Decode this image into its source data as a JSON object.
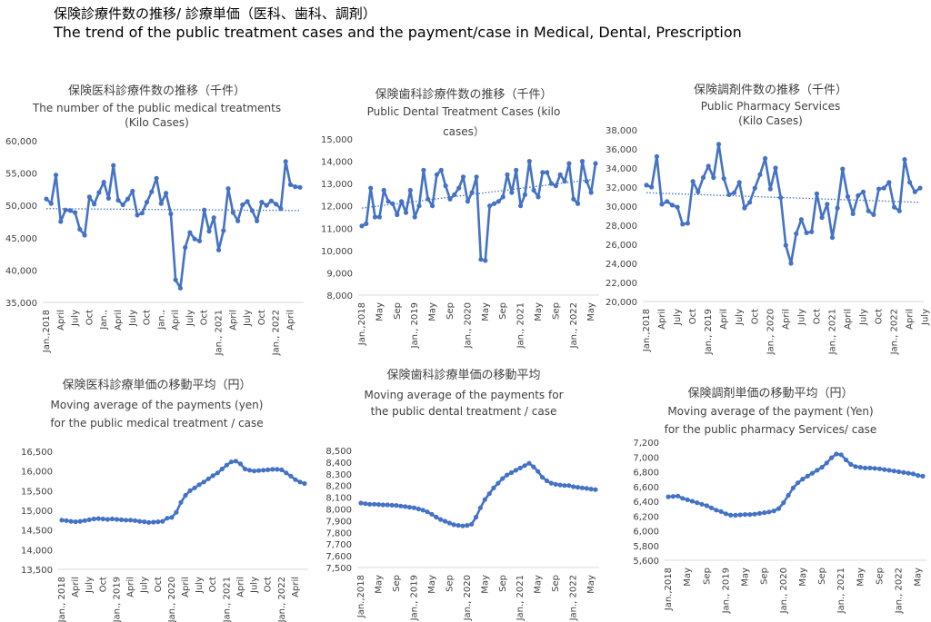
{
  "page": {
    "title_jp": "保険診療件数の推移/ 診療単価（医科、歯科、調剤）",
    "title_en": "The trend of the public treatment cases and the payment/case in Medical, Dental, Prescription"
  },
  "chart_data": [
    {
      "id": "medical-cases",
      "type": "line",
      "title_lines": [
        "保険医科診療件数の推移（千件）",
        "The number of the public medical treatments",
        "(Kilo Cases)"
      ],
      "xlabel": "",
      "ylabel": "",
      "ylim": [
        35000,
        60000
      ],
      "yticks": [
        35000,
        40000,
        45000,
        50000,
        55000,
        60000
      ],
      "ytick_labels": [
        "35,000",
        "40,000",
        "45,000",
        "50,000",
        "55,000",
        "60,000"
      ],
      "xtick_labels": [
        {
          "i": 0,
          "label": "Jan.,2018"
        },
        {
          "i": 3,
          "label": "April"
        },
        {
          "i": 6,
          "label": "July"
        },
        {
          "i": 9,
          "label": "Oct"
        },
        {
          "i": 12,
          "label": "Jan.,"
        },
        {
          "i": 15,
          "label": "April"
        },
        {
          "i": 18,
          "label": "July"
        },
        {
          "i": 21,
          "label": "Oct"
        },
        {
          "i": 24,
          "label": "Jan.,"
        },
        {
          "i": 27,
          "label": "April"
        },
        {
          "i": 30,
          "label": "July"
        },
        {
          "i": 33,
          "label": "Oct"
        },
        {
          "i": 36,
          "label": "Jan., 2021"
        },
        {
          "i": 39,
          "label": "April"
        },
        {
          "i": 42,
          "label": "July"
        },
        {
          "i": 45,
          "label": "Oct"
        },
        {
          "i": 48,
          "label": "Jan., 2022"
        },
        {
          "i": 51,
          "label": "April"
        }
      ],
      "series": [
        {
          "values": [
            51000,
            50300,
            54700,
            47500,
            49300,
            49200,
            48900,
            46300,
            45400,
            51300,
            50200,
            52000,
            53600,
            51100,
            56200,
            50800,
            50100,
            51000,
            52200,
            48500,
            48800,
            50500,
            52100,
            54200,
            50300,
            51900,
            48700,
            38500,
            37200,
            43500,
            45800,
            44800,
            44500,
            49300,
            46000,
            48100,
            43100,
            46100,
            52600,
            48900,
            47600,
            50100,
            50600,
            49200,
            47600,
            50500,
            50000,
            50700,
            50200,
            49500,
            56800,
            53200,
            52900,
            52800
          ]
        }
      ],
      "trendline": {
        "style": "dotted",
        "start": 49500,
        "end": 49200
      },
      "color": "#4472C4"
    },
    {
      "id": "dental-cases",
      "type": "line",
      "title_lines": [
        "保険歯科診療件数の推移（千件）",
        "Public Dental Treatment Cases (kilo",
        "cases）"
      ],
      "xlabel": "",
      "ylabel": "",
      "ylim": [
        8000,
        15000
      ],
      "yticks": [
        8000,
        9000,
        10000,
        11000,
        12000,
        13000,
        14000,
        15000
      ],
      "ytick_labels": [
        "8,000",
        "9,000",
        "10,000",
        "11,000",
        "12,000",
        "13,000",
        "14,000",
        "15,000"
      ],
      "xtick_labels": [
        {
          "i": 0,
          "label": "Jan.,2018"
        },
        {
          "i": 4,
          "label": "May"
        },
        {
          "i": 8,
          "label": "Sep"
        },
        {
          "i": 12,
          "label": "Jan., 2019"
        },
        {
          "i": 16,
          "label": "May"
        },
        {
          "i": 20,
          "label": "Sep"
        },
        {
          "i": 24,
          "label": "Jan., 2020"
        },
        {
          "i": 28,
          "label": "May"
        },
        {
          "i": 32,
          "label": "Sep"
        },
        {
          "i": 36,
          "label": "Jan., 2021"
        },
        {
          "i": 40,
          "label": "May"
        },
        {
          "i": 44,
          "label": "Sep"
        },
        {
          "i": 48,
          "label": "Jan., 2022"
        },
        {
          "i": 52,
          "label": "May"
        }
      ],
      "series": [
        {
          "values": [
            11100,
            11200,
            12800,
            11500,
            11500,
            12700,
            12200,
            12100,
            11600,
            12200,
            11700,
            12700,
            11500,
            12000,
            13600,
            12300,
            12000,
            13400,
            13600,
            12900,
            12300,
            12500,
            12800,
            13300,
            12200,
            12600,
            13300,
            9600,
            9550,
            12000,
            12100,
            12200,
            12400,
            13400,
            12600,
            13600,
            12000,
            12500,
            14000,
            12700,
            12400,
            13500,
            13500,
            13000,
            12900,
            13400,
            13100,
            13900,
            12300,
            12100,
            14000,
            13100,
            12600,
            13900
          ]
        }
      ],
      "trendline": {
        "style": "dotted",
        "start": 11900,
        "end": 13200
      },
      "color": "#4472C4"
    },
    {
      "id": "pharmacy-cases",
      "type": "line",
      "title_lines": [
        "保険調剤件数の推移（千件）",
        "Public Pharmacy Services",
        "(Kilo Cases)"
      ],
      "xlabel": "",
      "ylabel": "",
      "ylim": [
        20000,
        38000
      ],
      "yticks": [
        20000,
        22000,
        24000,
        26000,
        28000,
        30000,
        32000,
        34000,
        36000,
        38000
      ],
      "ytick_labels": [
        "20,000",
        "22,000",
        "24,000",
        "26,000",
        "28,000",
        "30,000",
        "32,000",
        "34,000",
        "36,000",
        "38,000"
      ],
      "xtick_labels": [
        {
          "i": 0,
          "label": "Jan.,2018"
        },
        {
          "i": 3,
          "label": "April"
        },
        {
          "i": 6,
          "label": "July"
        },
        {
          "i": 9,
          "label": "Oct"
        },
        {
          "i": 12,
          "label": "Jan., 2019"
        },
        {
          "i": 15,
          "label": "April"
        },
        {
          "i": 18,
          "label": "July"
        },
        {
          "i": 21,
          "label": "Oct"
        },
        {
          "i": 24,
          "label": "Jan., 2020"
        },
        {
          "i": 27,
          "label": "April"
        },
        {
          "i": 30,
          "label": "July"
        },
        {
          "i": 33,
          "label": "Oct"
        },
        {
          "i": 36,
          "label": "Jan., 2021"
        },
        {
          "i": 39,
          "label": "April"
        },
        {
          "i": 42,
          "label": "July"
        },
        {
          "i": 45,
          "label": "Oct"
        },
        {
          "i": 48,
          "label": "Jan., 2022"
        },
        {
          "i": 51,
          "label": "April"
        },
        {
          "i": 54,
          "label": "July"
        }
      ],
      "series": [
        {
          "values": [
            32200,
            32000,
            35200,
            30200,
            30500,
            30100,
            29900,
            28100,
            28200,
            32600,
            31500,
            33000,
            34200,
            33000,
            36500,
            32900,
            31200,
            31400,
            32500,
            29800,
            30400,
            31900,
            33300,
            35000,
            31800,
            34000,
            30900,
            25900,
            24000,
            27100,
            28600,
            27200,
            27300,
            31300,
            28800,
            30200,
            26700,
            29800,
            33900,
            31000,
            29200,
            31100,
            31500,
            29500,
            29100,
            31800,
            31900,
            32500,
            29900,
            29500,
            34900,
            32500,
            31500,
            31900
          ]
        }
      ],
      "trendline": {
        "style": "dotted",
        "start": 31400,
        "end": 30400
      },
      "color": "#4472C4"
    },
    {
      "id": "medical-payment",
      "type": "line",
      "title_lines": [
        "保険医科診療単価の移動平均（円）",
        "Moving average of the payments (yen)",
        "for the public medical treatment / case"
      ],
      "xlabel": "",
      "ylabel": "",
      "ylim": [
        13500,
        16500
      ],
      "yticks": [
        13500,
        14000,
        14500,
        15000,
        15500,
        16000,
        16500
      ],
      "ytick_labels": [
        "13,500",
        "14,000",
        "14,500",
        "15,000",
        "15,500",
        "16,000",
        "16,500"
      ],
      "xtick_labels": [
        {
          "i": 0,
          "label": "Jan., 2018"
        },
        {
          "i": 3,
          "label": "April"
        },
        {
          "i": 6,
          "label": "July"
        },
        {
          "i": 9,
          "label": "Oct"
        },
        {
          "i": 12,
          "label": "Jan., 2019"
        },
        {
          "i": 15,
          "label": "April"
        },
        {
          "i": 18,
          "label": "July"
        },
        {
          "i": 21,
          "label": "Oct"
        },
        {
          "i": 24,
          "label": "Jan., 2020"
        },
        {
          "i": 27,
          "label": "April"
        },
        {
          "i": 30,
          "label": "July"
        },
        {
          "i": 33,
          "label": "Oct"
        },
        {
          "i": 36,
          "label": "Jan., 2021"
        },
        {
          "i": 39,
          "label": "April"
        },
        {
          "i": 42,
          "label": "July"
        },
        {
          "i": 45,
          "label": "Oct"
        },
        {
          "i": 48,
          "label": "Jan., 2022"
        },
        {
          "i": 51,
          "label": "April"
        }
      ],
      "series": [
        {
          "values": [
            14750,
            14740,
            14720,
            14710,
            14720,
            14740,
            14760,
            14780,
            14790,
            14780,
            14770,
            14780,
            14770,
            14760,
            14750,
            14750,
            14740,
            14720,
            14710,
            14690,
            14700,
            14710,
            14720,
            14800,
            14820,
            14950,
            15200,
            15380,
            15500,
            15570,
            15650,
            15720,
            15800,
            15880,
            15950,
            16050,
            16150,
            16230,
            16250,
            16180,
            16050,
            16020,
            16000,
            16010,
            16020,
            16030,
            16040,
            16040,
            16030,
            15950,
            15870,
            15780,
            15720,
            15680
          ]
        }
      ],
      "color": "#4472C4"
    },
    {
      "id": "dental-payment",
      "type": "line",
      "title_lines": [
        "保険歯科診療単価の移動平均",
        "Moving average of the payments for",
        "the public dental treatment / case"
      ],
      "xlabel": "",
      "ylabel": "",
      "ylim": [
        7500,
        8500
      ],
      "yticks": [
        7500,
        7600,
        7700,
        7800,
        7900,
        8000,
        8100,
        8200,
        8300,
        8400,
        8500
      ],
      "ytick_labels": [
        "7,500",
        "7,600",
        "7,700",
        "7,800",
        "7,900",
        "8,000",
        "8,100",
        "8,200",
        "8,300",
        "8,400",
        "8,500"
      ],
      "xtick_labels": [
        {
          "i": 0,
          "label": "Jan.,2018"
        },
        {
          "i": 4,
          "label": "May"
        },
        {
          "i": 8,
          "label": "Sep"
        },
        {
          "i": 12,
          "label": "Jan., 2019"
        },
        {
          "i": 16,
          "label": "May"
        },
        {
          "i": 20,
          "label": "Sep"
        },
        {
          "i": 24,
          "label": "Jan., 2020"
        },
        {
          "i": 28,
          "label": "May"
        },
        {
          "i": 32,
          "label": "Sep"
        },
        {
          "i": 36,
          "label": "Jan., 2021"
        },
        {
          "i": 40,
          "label": "May"
        },
        {
          "i": 44,
          "label": "Sep"
        },
        {
          "i": 48,
          "label": "Jan., 2022"
        },
        {
          "i": 52,
          "label": "May"
        }
      ],
      "series": [
        {
          "values": [
            8050,
            8045,
            8040,
            8040,
            8038,
            8035,
            8035,
            8032,
            8030,
            8025,
            8020,
            8015,
            8010,
            8000,
            7990,
            7975,
            7955,
            7930,
            7910,
            7895,
            7880,
            7865,
            7860,
            7855,
            7860,
            7870,
            7930,
            8010,
            8080,
            8130,
            8180,
            8220,
            8260,
            8290,
            8310,
            8330,
            8350,
            8370,
            8390,
            8360,
            8320,
            8270,
            8240,
            8220,
            8210,
            8205,
            8200,
            8200,
            8190,
            8185,
            8180,
            8175,
            8170,
            8165
          ]
        }
      ],
      "color": "#4472C4"
    },
    {
      "id": "pharmacy-payment",
      "type": "line",
      "title_lines": [
        "保険調剤単価の移動平均（円）",
        "Moving average of the payment (Yen)",
        "for the public pharmacy Services/ case"
      ],
      "xlabel": "",
      "ylabel": "",
      "ylim": [
        5600,
        7200
      ],
      "yticks": [
        5600,
        5800,
        6000,
        6200,
        6400,
        6600,
        6800,
        7000,
        7200
      ],
      "ytick_labels": [
        "5,600",
        "5,800",
        "6,000",
        "6,200",
        "6,400",
        "6,600",
        "6,800",
        "7,000",
        "7,200"
      ],
      "xtick_labels": [
        {
          "i": 0,
          "label": "Jan.,2018"
        },
        {
          "i": 4,
          "label": "May"
        },
        {
          "i": 8,
          "label": "Sep"
        },
        {
          "i": 12,
          "label": "Jan., 2019"
        },
        {
          "i": 16,
          "label": "May"
        },
        {
          "i": 20,
          "label": "Sep"
        },
        {
          "i": 24,
          "label": "Jan., 2020"
        },
        {
          "i": 28,
          "label": "May"
        },
        {
          "i": 32,
          "label": "Sep"
        },
        {
          "i": 36,
          "label": "Jan., 2021"
        },
        {
          "i": 40,
          "label": "May"
        },
        {
          "i": 44,
          "label": "Sep"
        },
        {
          "i": 48,
          "label": "Jan., 2022"
        },
        {
          "i": 52,
          "label": "May"
        }
      ],
      "series": [
        {
          "values": [
            6460,
            6465,
            6470,
            6440,
            6420,
            6400,
            6380,
            6360,
            6340,
            6310,
            6280,
            6260,
            6230,
            6210,
            6210,
            6215,
            6220,
            6220,
            6225,
            6235,
            6245,
            6255,
            6270,
            6300,
            6380,
            6480,
            6580,
            6650,
            6700,
            6740,
            6780,
            6820,
            6860,
            6920,
            6990,
            7040,
            7030,
            6960,
            6900,
            6870,
            6860,
            6850,
            6850,
            6845,
            6840,
            6830,
            6820,
            6810,
            6800,
            6790,
            6780,
            6770,
            6750,
            6740
          ]
        }
      ],
      "color": "#4472C4"
    }
  ]
}
